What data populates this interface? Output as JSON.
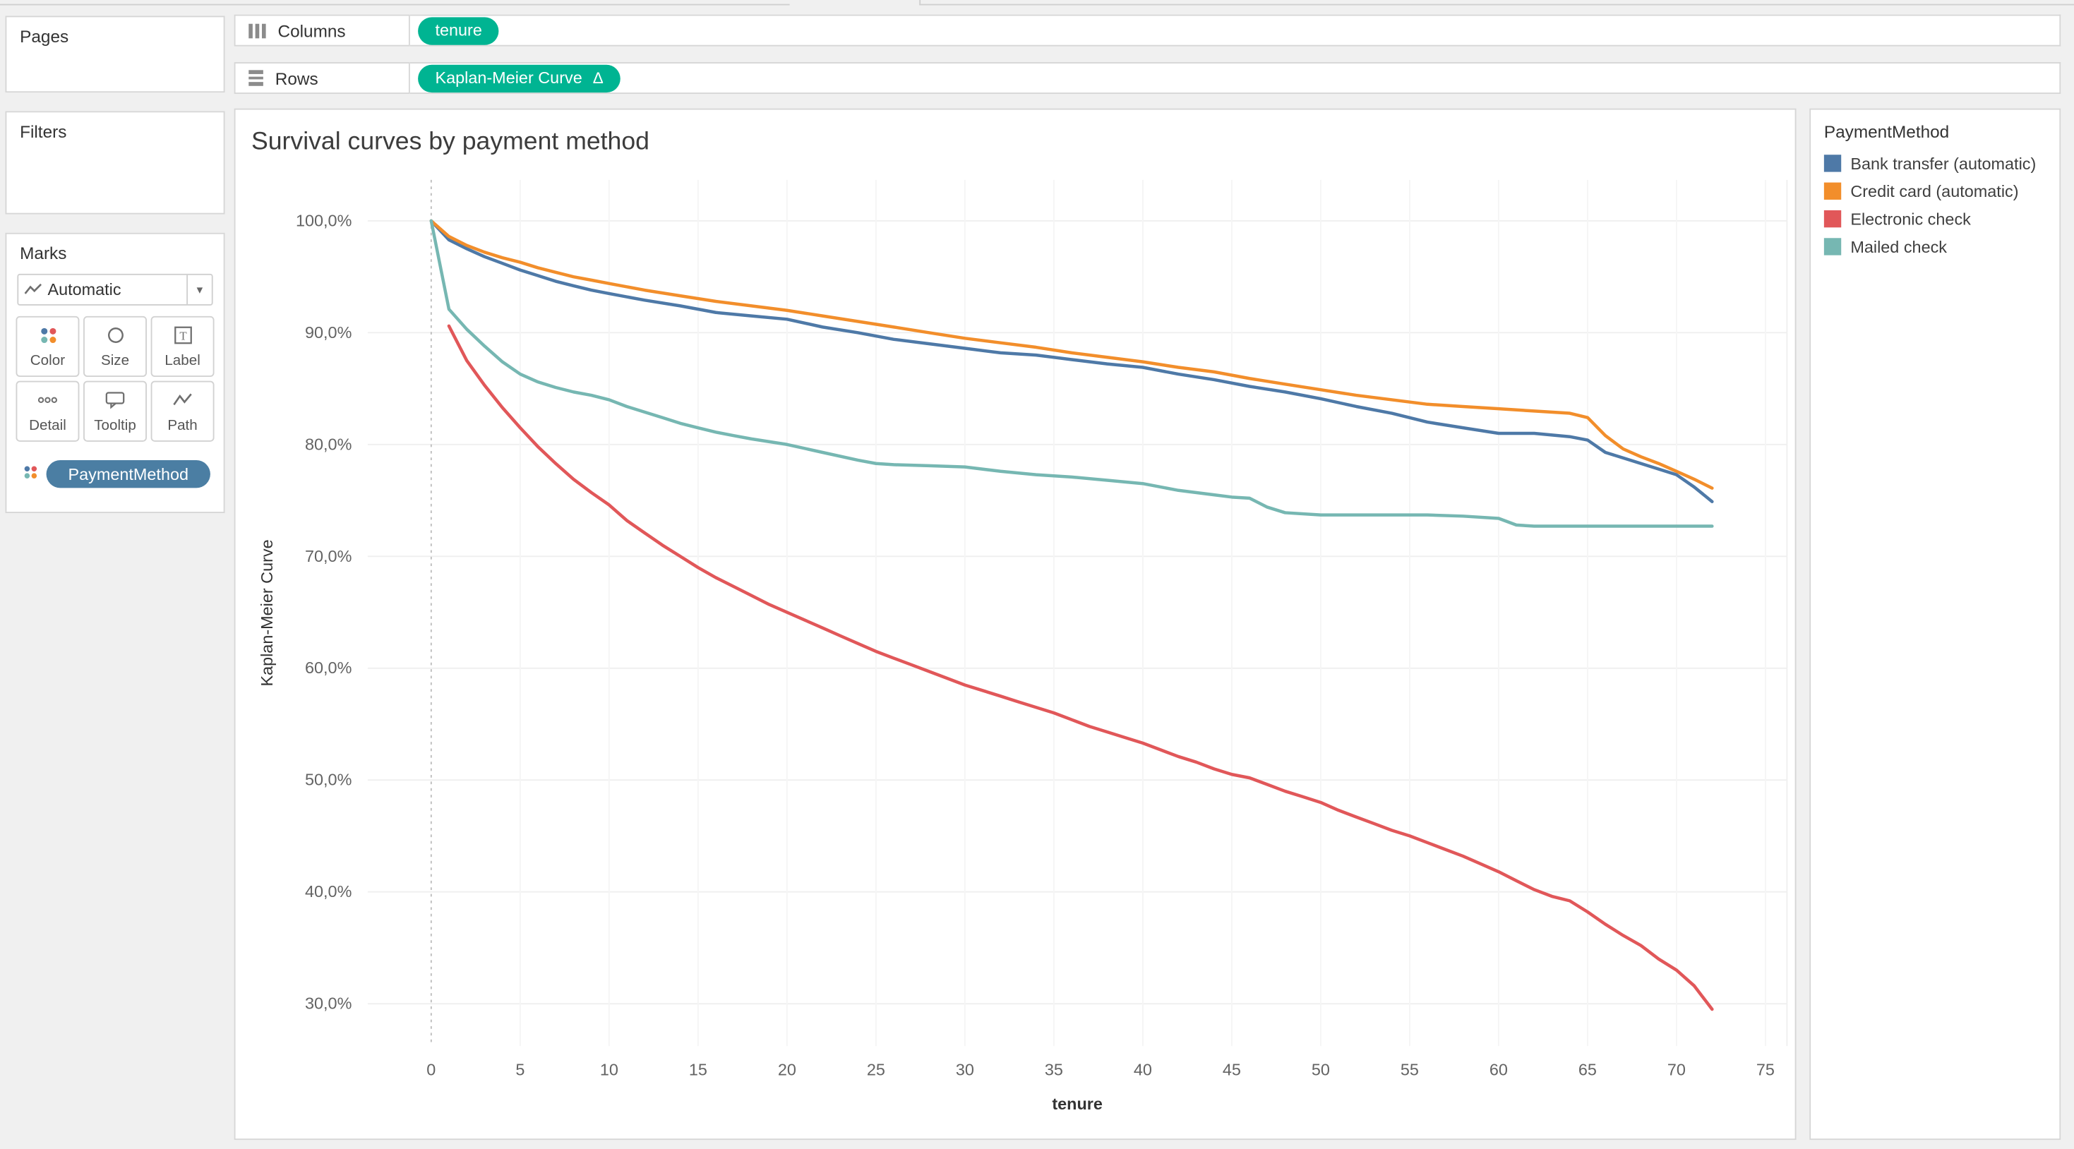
{
  "colors": {
    "pill_green": "#00b492",
    "pill_blue": "#4b7ea3",
    "background": "#f0f0f0",
    "card_border": "#d6d6d6",
    "series_blue": "#4e79a7",
    "series_orange": "#f28e2b",
    "series_red": "#e15759",
    "series_teal": "#76b7b2"
  },
  "icons": {
    "columns_icon": "vertical-bars",
    "rows_icon": "horizontal-bars",
    "caret_down": "▾",
    "automatic_mark_icon": "line-zigzag",
    "color_icon": "four-dots",
    "size_icon": "circle-outline",
    "label_icon": "boxed-T",
    "detail_icon": "three-dots",
    "tooltip_icon": "speech-bubble",
    "path_icon": "zigzag-line"
  },
  "shelves": {
    "columns": {
      "label": "Columns",
      "pills": [
        {
          "text": "tenure"
        }
      ]
    },
    "rows": {
      "label": "Rows",
      "pills": [
        {
          "text": "Kaplan-Meier Curve",
          "suffix": "Δ"
        }
      ]
    }
  },
  "panels": {
    "pages": {
      "title": "Pages"
    },
    "filters": {
      "title": "Filters"
    },
    "marks": {
      "title": "Marks",
      "mark_type": "Automatic",
      "buttons": [
        {
          "label": "Color"
        },
        {
          "label": "Size"
        },
        {
          "label": "Label"
        },
        {
          "label": "Detail"
        },
        {
          "label": "Tooltip"
        },
        {
          "label": "Path"
        }
      ],
      "pills": [
        {
          "text": "PaymentMethod"
        }
      ]
    }
  },
  "legend": {
    "title": "PaymentMethod",
    "items": [
      {
        "label": "Bank transfer (automatic)",
        "color": "#4e79a7"
      },
      {
        "label": "Credit card (automatic)",
        "color": "#f28e2b"
      },
      {
        "label": "Electronic check",
        "color": "#e15759"
      },
      {
        "label": "Mailed check",
        "color": "#76b7b2"
      }
    ]
  },
  "chart_data": {
    "type": "line",
    "title": "Survival curves by payment method",
    "xlabel": "tenure",
    "ylabel": "Kaplan-Meier Curve",
    "xlim": [
      -3.6,
      76.3
    ],
    "ylim": [
      26,
      104
    ],
    "grid": "light",
    "legend_position": "right",
    "x_ticks": [
      0,
      5,
      10,
      15,
      20,
      25,
      30,
      35,
      40,
      45,
      50,
      55,
      60,
      65,
      70,
      75
    ],
    "y_ticks": [
      {
        "value": 100,
        "label": "100,0%"
      },
      {
        "value": 90,
        "label": "90,0%"
      },
      {
        "value": 80,
        "label": "80,0%"
      },
      {
        "value": 70,
        "label": "70,0%"
      },
      {
        "value": 60,
        "label": "60,0%"
      },
      {
        "value": 50,
        "label": "50,0%"
      },
      {
        "value": 40,
        "label": "40,0%"
      },
      {
        "value": 30,
        "label": "30,0%"
      }
    ],
    "series": [
      {
        "name": "Bank transfer (automatic)",
        "color": "#4e79a7",
        "points": [
          [
            0,
            100
          ],
          [
            1,
            98.3
          ],
          [
            2,
            97.5
          ],
          [
            3,
            96.8
          ],
          [
            4,
            96.2
          ],
          [
            5,
            95.6
          ],
          [
            6,
            95.1
          ],
          [
            7,
            94.6
          ],
          [
            8,
            94.2
          ],
          [
            9,
            93.8
          ],
          [
            10,
            93.5
          ],
          [
            12,
            92.9
          ],
          [
            14,
            92.4
          ],
          [
            16,
            91.8
          ],
          [
            18,
            91.5
          ],
          [
            20,
            91.2
          ],
          [
            22,
            90.5
          ],
          [
            24,
            90
          ],
          [
            26,
            89.4
          ],
          [
            28,
            89
          ],
          [
            30,
            88.6
          ],
          [
            32,
            88.2
          ],
          [
            34,
            88
          ],
          [
            36,
            87.6
          ],
          [
            38,
            87.2
          ],
          [
            40,
            86.9
          ],
          [
            42,
            86.3
          ],
          [
            44,
            85.8
          ],
          [
            46,
            85.2
          ],
          [
            48,
            84.7
          ],
          [
            50,
            84.1
          ],
          [
            52,
            83.4
          ],
          [
            54,
            82.8
          ],
          [
            56,
            82
          ],
          [
            58,
            81.5
          ],
          [
            60,
            81
          ],
          [
            62,
            81
          ],
          [
            64,
            80.7
          ],
          [
            65,
            80.4
          ],
          [
            66,
            79.3
          ],
          [
            67,
            78.8
          ],
          [
            68,
            78.3
          ],
          [
            69,
            77.8
          ],
          [
            70,
            77.3
          ],
          [
            71,
            76.2
          ],
          [
            72,
            74.9
          ]
        ]
      },
      {
        "name": "Credit card (automatic)",
        "color": "#f28e2b",
        "points": [
          [
            0,
            100
          ],
          [
            1,
            98.6
          ],
          [
            2,
            97.8
          ],
          [
            3,
            97.2
          ],
          [
            4,
            96.7
          ],
          [
            5,
            96.3
          ],
          [
            6,
            95.8
          ],
          [
            7,
            95.4
          ],
          [
            8,
            95
          ],
          [
            9,
            94.7
          ],
          [
            10,
            94.4
          ],
          [
            12,
            93.8
          ],
          [
            14,
            93.3
          ],
          [
            16,
            92.8
          ],
          [
            18,
            92.4
          ],
          [
            20,
            92
          ],
          [
            22,
            91.5
          ],
          [
            24,
            91
          ],
          [
            26,
            90.5
          ],
          [
            28,
            90
          ],
          [
            30,
            89.5
          ],
          [
            32,
            89.1
          ],
          [
            34,
            88.7
          ],
          [
            36,
            88.2
          ],
          [
            38,
            87.8
          ],
          [
            40,
            87.4
          ],
          [
            42,
            86.9
          ],
          [
            44,
            86.5
          ],
          [
            46,
            85.9
          ],
          [
            48,
            85.4
          ],
          [
            50,
            84.9
          ],
          [
            52,
            84.4
          ],
          [
            54,
            84
          ],
          [
            56,
            83.6
          ],
          [
            58,
            83.4
          ],
          [
            60,
            83.2
          ],
          [
            62,
            83
          ],
          [
            64,
            82.8
          ],
          [
            65,
            82.4
          ],
          [
            66,
            80.8
          ],
          [
            67,
            79.6
          ],
          [
            68,
            78.9
          ],
          [
            69,
            78.3
          ],
          [
            70,
            77.6
          ],
          [
            71,
            76.9
          ],
          [
            72,
            76.1
          ]
        ]
      },
      {
        "name": "Electronic check",
        "color": "#e15759",
        "points": [
          [
            1,
            90.6
          ],
          [
            2,
            87.5
          ],
          [
            3,
            85.3
          ],
          [
            4,
            83.3
          ],
          [
            5,
            81.5
          ],
          [
            6,
            79.8
          ],
          [
            7,
            78.3
          ],
          [
            8,
            76.9
          ],
          [
            9,
            75.7
          ],
          [
            10,
            74.6
          ],
          [
            11,
            73.2
          ],
          [
            12,
            72.1
          ],
          [
            13,
            71
          ],
          [
            14,
            70
          ],
          [
            15,
            69
          ],
          [
            16,
            68.1
          ],
          [
            17,
            67.3
          ],
          [
            18,
            66.5
          ],
          [
            19,
            65.7
          ],
          [
            20,
            65
          ],
          [
            21,
            64.3
          ],
          [
            22,
            63.6
          ],
          [
            23,
            62.9
          ],
          [
            24,
            62.2
          ],
          [
            25,
            61.5
          ],
          [
            26,
            60.9
          ],
          [
            27,
            60.3
          ],
          [
            28,
            59.7
          ],
          [
            29,
            59.1
          ],
          [
            30,
            58.5
          ],
          [
            31,
            58
          ],
          [
            32,
            57.5
          ],
          [
            33,
            57
          ],
          [
            34,
            56.5
          ],
          [
            35,
            56
          ],
          [
            36,
            55.4
          ],
          [
            37,
            54.8
          ],
          [
            38,
            54.3
          ],
          [
            39,
            53.8
          ],
          [
            40,
            53.3
          ],
          [
            41,
            52.7
          ],
          [
            42,
            52.1
          ],
          [
            43,
            51.6
          ],
          [
            44,
            51
          ],
          [
            45,
            50.5
          ],
          [
            46,
            50.2
          ],
          [
            47,
            49.6
          ],
          [
            48,
            49
          ],
          [
            49,
            48.5
          ],
          [
            50,
            48
          ],
          [
            51,
            47.3
          ],
          [
            52,
            46.7
          ],
          [
            53,
            46.1
          ],
          [
            54,
            45.5
          ],
          [
            55,
            45
          ],
          [
            56,
            44.4
          ],
          [
            57,
            43.8
          ],
          [
            58,
            43.2
          ],
          [
            59,
            42.5
          ],
          [
            60,
            41.8
          ],
          [
            61,
            41
          ],
          [
            62,
            40.2
          ],
          [
            63,
            39.6
          ],
          [
            64,
            39.2
          ],
          [
            65,
            38.2
          ],
          [
            66,
            37.1
          ],
          [
            67,
            36.1
          ],
          [
            68,
            35.2
          ],
          [
            69,
            34
          ],
          [
            70,
            33
          ],
          [
            71,
            31.6
          ],
          [
            72,
            29.5
          ]
        ]
      },
      {
        "name": "Mailed check",
        "color": "#76b7b2",
        "points": [
          [
            0,
            100
          ],
          [
            1,
            92.1
          ],
          [
            2,
            90.3
          ],
          [
            3,
            88.8
          ],
          [
            4,
            87.4
          ],
          [
            5,
            86.3
          ],
          [
            6,
            85.6
          ],
          [
            7,
            85.1
          ],
          [
            8,
            84.7
          ],
          [
            9,
            84.4
          ],
          [
            10,
            84
          ],
          [
            11,
            83.4
          ],
          [
            12,
            82.9
          ],
          [
            13,
            82.4
          ],
          [
            14,
            81.9
          ],
          [
            15,
            81.5
          ],
          [
            16,
            81.1
          ],
          [
            17,
            80.8
          ],
          [
            18,
            80.5
          ],
          [
            20,
            80
          ],
          [
            22,
            79.3
          ],
          [
            24,
            78.6
          ],
          [
            25,
            78.3
          ],
          [
            26,
            78.2
          ],
          [
            28,
            78.1
          ],
          [
            30,
            78
          ],
          [
            32,
            77.6
          ],
          [
            34,
            77.3
          ],
          [
            36,
            77.1
          ],
          [
            38,
            76.8
          ],
          [
            40,
            76.5
          ],
          [
            42,
            75.9
          ],
          [
            44,
            75.5
          ],
          [
            45,
            75.3
          ],
          [
            46,
            75.2
          ],
          [
            47,
            74.4
          ],
          [
            48,
            73.9
          ],
          [
            50,
            73.7
          ],
          [
            52,
            73.7
          ],
          [
            54,
            73.7
          ],
          [
            56,
            73.7
          ],
          [
            58,
            73.6
          ],
          [
            60,
            73.4
          ],
          [
            61,
            72.8
          ],
          [
            62,
            72.7
          ],
          [
            64,
            72.7
          ],
          [
            66,
            72.7
          ],
          [
            68,
            72.7
          ],
          [
            70,
            72.7
          ],
          [
            72,
            72.7
          ]
        ]
      }
    ]
  }
}
